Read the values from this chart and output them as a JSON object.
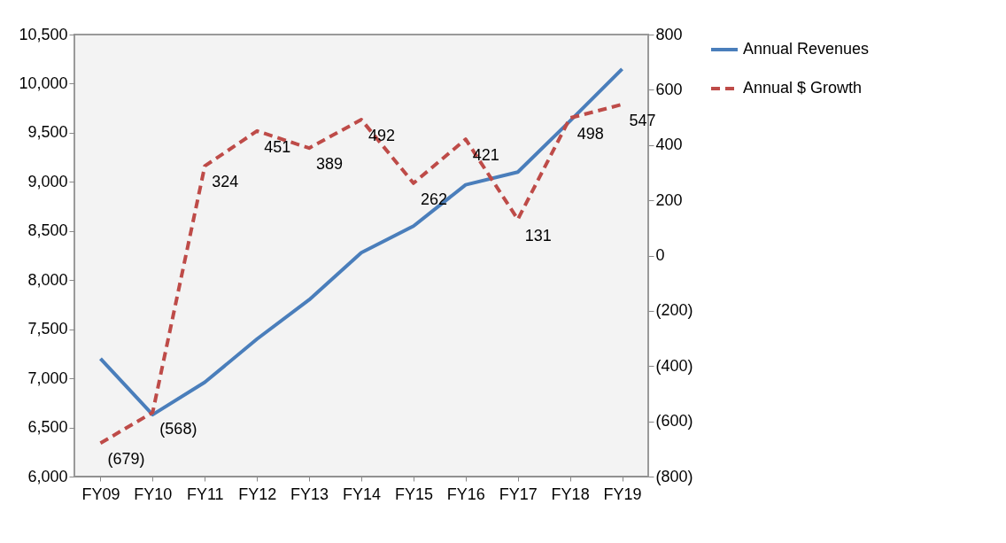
{
  "chart_data": {
    "type": "line",
    "categories": [
      "FY09",
      "FY10",
      "FY11",
      "FY12",
      "FY13",
      "FY14",
      "FY15",
      "FY16",
      "FY17",
      "FY18",
      "FY19"
    ],
    "series": [
      {
        "name": "Annual Revenues",
        "color": "#4a7ebb",
        "line_style": "solid",
        "values": [
          7200,
          6630,
          6960,
          7400,
          7800,
          8280,
          8550,
          8970,
          9100,
          9620,
          10150
        ]
      },
      {
        "name": "Annual $ Growth",
        "color": "#be4b48",
        "line_style": "dashed",
        "axis": "y2",
        "values": [
          -679,
          -568,
          324,
          451,
          389,
          492,
          262,
          421,
          131,
          498,
          547
        ],
        "value_labels": [
          "(679)",
          "(568)",
          "324",
          "451",
          "389",
          "492",
          "262",
          "421",
          "131",
          "498",
          "547"
        ]
      }
    ],
    "ylim": [
      6000,
      10500
    ],
    "yticks": [
      {
        "value": 6000,
        "label": "6,000"
      },
      {
        "value": 6500,
        "label": "6,500"
      },
      {
        "value": 7000,
        "label": "7,000"
      },
      {
        "value": 7500,
        "label": "7,500"
      },
      {
        "value": 8000,
        "label": "8,000"
      },
      {
        "value": 8500,
        "label": "8,500"
      },
      {
        "value": 9000,
        "label": "9,000"
      },
      {
        "value": 9500,
        "label": "9,500"
      },
      {
        "value": 10000,
        "label": "10,000"
      },
      {
        "value": 10500,
        "label": "10,500"
      }
    ],
    "y2lim": [
      -800,
      800
    ],
    "y2ticks": [
      {
        "value": -800,
        "label": "(800)"
      },
      {
        "value": -600,
        "label": "(600)"
      },
      {
        "value": -400,
        "label": "(400)"
      },
      {
        "value": -200,
        "label": "(200)"
      },
      0,
      200,
      400,
      600,
      800
    ],
    "grid": false,
    "legend": "right",
    "marker": "none"
  }
}
